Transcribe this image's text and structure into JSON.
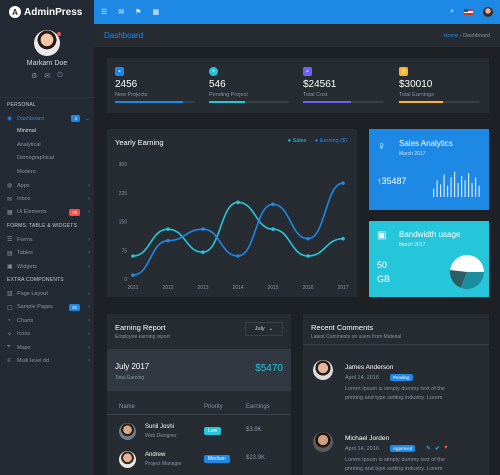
{
  "brand": {
    "name": "AdminPress",
    "logo": "A"
  },
  "profile": {
    "name": "Markarn Doe"
  },
  "sidebar": {
    "section1": "PERSONAL",
    "dashboard": {
      "label": "Dashboard",
      "badge": "4"
    },
    "dashboard_sub": [
      "Minimal",
      "Analytical",
      "Demographical",
      "Modern"
    ],
    "items1": [
      {
        "label": "Apps",
        "icon": "apps-icon"
      },
      {
        "label": "Inbox",
        "icon": "inbox-icon"
      },
      {
        "label": "Ui Elements",
        "icon": "ui-icon",
        "badge": "25"
      }
    ],
    "section2": "FORMS, TABLE & WIDGETS",
    "items2": [
      {
        "label": "Forms",
        "icon": "forms-icon"
      },
      {
        "label": "Tables",
        "icon": "tables-icon"
      },
      {
        "label": "Widgets",
        "icon": "widgets-icon"
      }
    ],
    "section3": "EXTRA COMPONENTS",
    "items3": [
      {
        "label": "Page Layout",
        "icon": "layout-icon"
      },
      {
        "label": "Sample Pages",
        "icon": "pages-icon",
        "badge": "25"
      },
      {
        "label": "Charts",
        "icon": "charts-icon"
      },
      {
        "label": "Icons",
        "icon": "icons-icon"
      },
      {
        "label": "Maps",
        "icon": "maps-icon"
      },
      {
        "label": "Multi level dd",
        "icon": "multilevel-icon"
      }
    ]
  },
  "header": {
    "title": "Dashboard",
    "breadcrumb_home": "Home",
    "breadcrumb_current": "Dashboard"
  },
  "stats": [
    {
      "value": "2456",
      "label": "New Projects",
      "color": "#1e88e5",
      "progress": 0.85
    },
    {
      "value": "546",
      "label": "Pending Project",
      "color": "#26c6da",
      "progress": 0.45
    },
    {
      "value": "$24561",
      "label": "Total Cost",
      "color": "#7460ee",
      "progress": 0.6
    },
    {
      "value": "$30010",
      "label": "Total Earnings",
      "color": "#ffb22b",
      "progress": 0.55
    }
  ],
  "chart": {
    "title": "Yearly Earning",
    "legend": [
      "Sales",
      "Earning ($)"
    ],
    "colors": [
      "#26c6da",
      "#1e88e5"
    ]
  },
  "chart_data": {
    "type": "line",
    "x": [
      "2011",
      "2012",
      "2013",
      "2014",
      "2015",
      "2016",
      "2017"
    ],
    "yticks": [
      "0",
      "75",
      "150",
      "225",
      "300"
    ],
    "ylim": [
      0,
      300
    ],
    "series": [
      {
        "name": "Sales",
        "values": [
          60,
          130,
          70,
          200,
          130,
          60,
          105
        ]
      },
      {
        "name": "Earning ($)",
        "values": [
          10,
          100,
          130,
          60,
          195,
          105,
          250
        ]
      }
    ]
  },
  "sales_analytics": {
    "title": "Sales Analytics",
    "subtitle": "March 2017",
    "value": "35487",
    "bars": [
      0.3,
      0.6,
      0.45,
      0.8,
      0.4,
      0.7,
      0.9,
      0.5,
      0.75,
      0.6,
      0.85,
      0.5,
      0.7,
      0.4
    ]
  },
  "bandwidth": {
    "title": "Bandwidth usage",
    "subtitle": "March 2017",
    "value": "50",
    "unit": "GB"
  },
  "earning_report": {
    "title": "Earning Report",
    "subtitle": "Employee earning report",
    "month_select": "July",
    "month": "July 2017",
    "month_label": "Total Earning",
    "total": "$5470",
    "columns": [
      "Name",
      "Priority",
      "Earnings"
    ],
    "rows": [
      {
        "name": "Sunil Joshi",
        "role": "Web Designer",
        "priority": "Low",
        "pcolor": "#26c6da",
        "earnings": "$3.9K"
      },
      {
        "name": "Andrew",
        "role": "Project Manager",
        "priority": "Medium",
        "pcolor": "#1e88e5",
        "earnings": "$23.9K"
      }
    ]
  },
  "comments": {
    "title": "Recent Comments",
    "subtitle": "Latest Comments on users from Material",
    "items": [
      {
        "name": "James Anderson",
        "date": "April 14, 2016",
        "status": "Pending",
        "scolor": "#1e88e5",
        "text1": "Lorem Ipsum is simply dummy text of the",
        "text2": "printing and type setting industry. Lorem"
      },
      {
        "name": "Michael Jorden",
        "date": "April 14, 2016",
        "status": "Approved",
        "scolor": "#1e88e5",
        "text1": "Lorem Ipsum is simply dummy text of the",
        "text2": "printing and type setting industry. Lorem"
      }
    ]
  }
}
